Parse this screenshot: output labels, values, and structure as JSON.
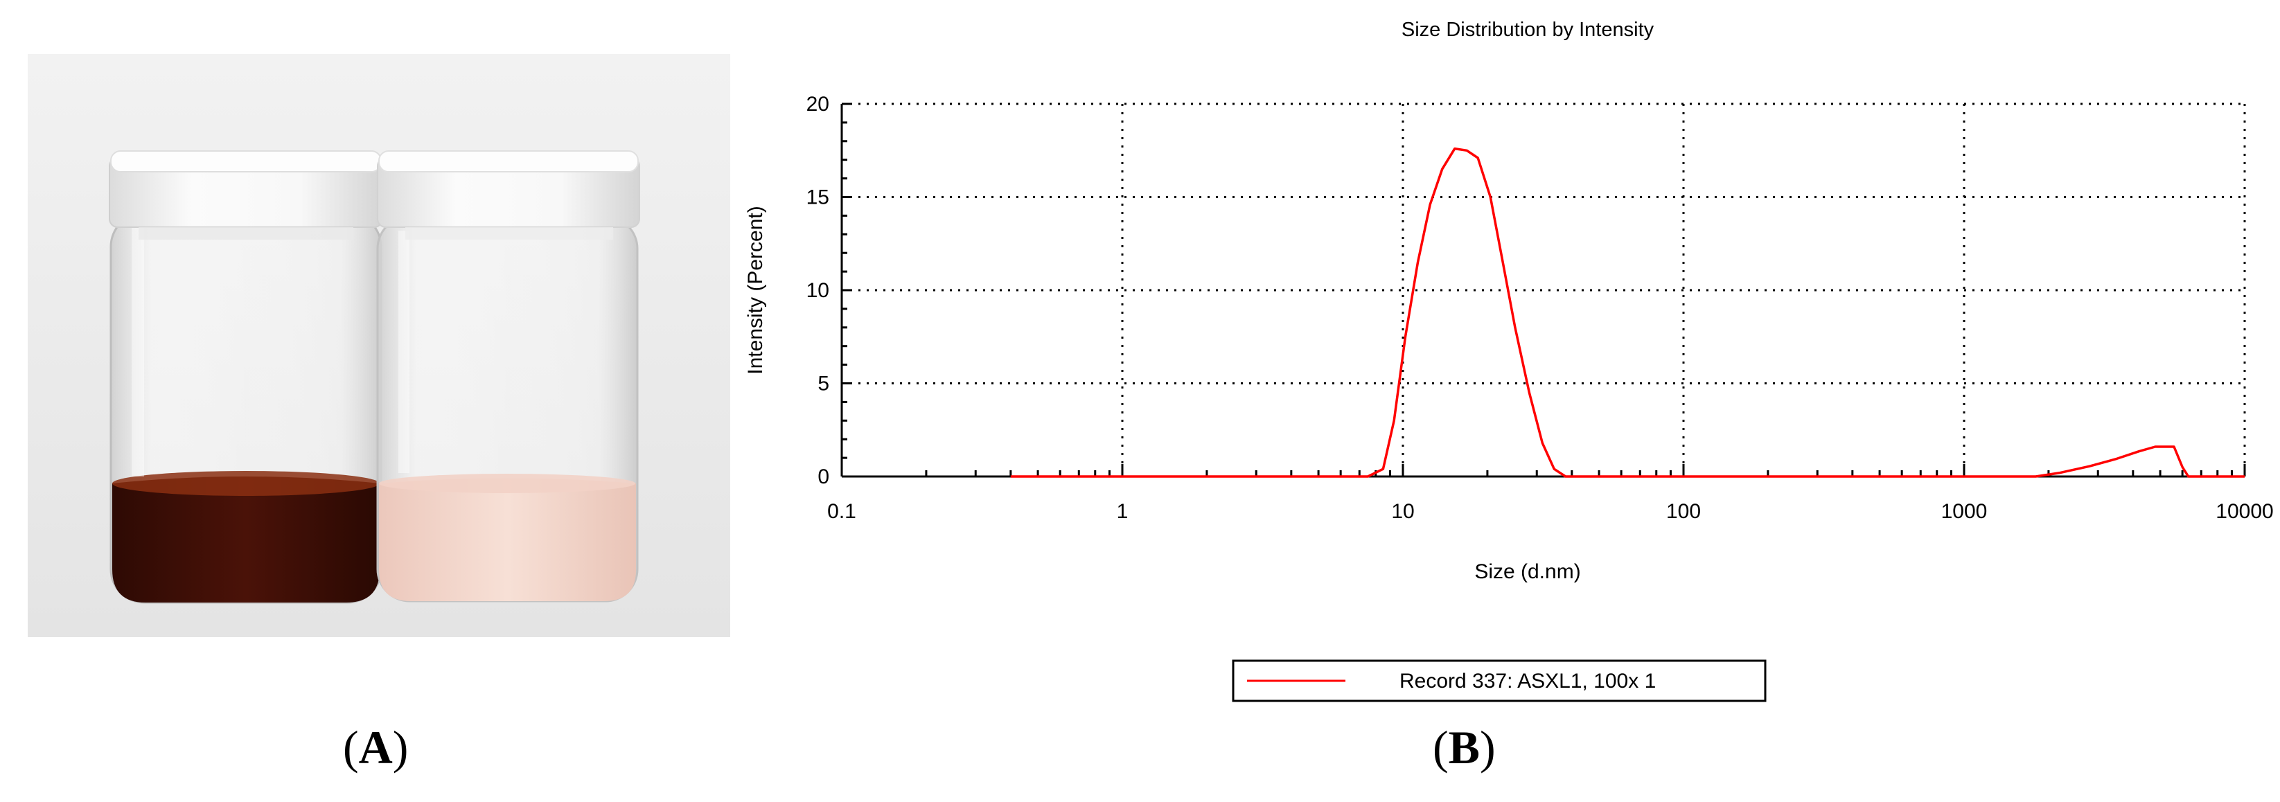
{
  "figure": {
    "panel_a_label": "A",
    "panel_b_label": "B"
  },
  "photo": {
    "background_color": "#ebebeb",
    "cap_color": "#f6f6f6",
    "left_liquid_color": "#4a1208",
    "right_liquid_color": "#f4d7cc"
  },
  "chart_data": {
    "type": "line",
    "title": "Size Distribution by Intensity",
    "xlabel": "Size (d.nm)",
    "ylabel": "Intensity (Percent)",
    "x_scale": "log",
    "xlim": [
      0.1,
      10000
    ],
    "ylim": [
      0,
      20
    ],
    "x_ticks": [
      0.1,
      1,
      10,
      100,
      1000,
      10000
    ],
    "x_tick_labels": [
      "0.1",
      "1",
      "10",
      "100",
      "1000",
      "10000"
    ],
    "y_ticks": [
      0,
      5,
      10,
      15,
      20
    ],
    "y_tick_labels": [
      "0",
      "5",
      "10",
      "15",
      "20"
    ],
    "grid": true,
    "legend_position": "bottom-center",
    "series": [
      {
        "name": "Record 337: ASXL1, 100x 1",
        "color": "#ff0000",
        "points": [
          [
            0.4,
            0
          ],
          [
            1,
            0
          ],
          [
            3,
            0
          ],
          [
            7.5,
            0
          ],
          [
            8.5,
            0.4
          ],
          [
            9.3,
            3
          ],
          [
            10.2,
            7.5
          ],
          [
            11.3,
            11.5
          ],
          [
            12.5,
            14.6
          ],
          [
            13.8,
            16.5
          ],
          [
            15.3,
            17.6
          ],
          [
            16.9,
            17.5
          ],
          [
            18.5,
            17.1
          ],
          [
            20.5,
            15
          ],
          [
            22.7,
            11.5
          ],
          [
            25.1,
            8
          ],
          [
            28.2,
            4.5
          ],
          [
            31.4,
            1.8
          ],
          [
            34.6,
            0.4
          ],
          [
            38,
            0
          ],
          [
            100,
            0
          ],
          [
            500,
            0
          ],
          [
            1800,
            0
          ],
          [
            2200,
            0.2
          ],
          [
            2800,
            0.55
          ],
          [
            3500,
            0.95
          ],
          [
            4200,
            1.35
          ],
          [
            4800,
            1.6
          ],
          [
            5600,
            1.6
          ],
          [
            6000,
            0.5
          ],
          [
            6300,
            0
          ],
          [
            10000,
            0
          ]
        ]
      }
    ]
  }
}
